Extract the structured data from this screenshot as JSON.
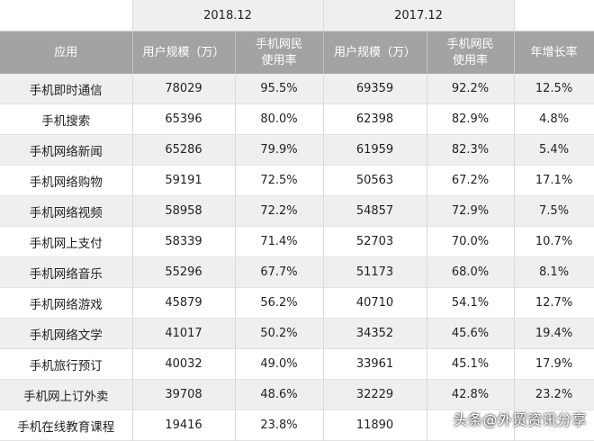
{
  "table": {
    "periods": [
      "2018.12",
      "2017.12"
    ],
    "headers": {
      "app": "应用",
      "users_a": "用户规模（万）",
      "rate_a_line1": "手机网民",
      "rate_a_line2": "使用率",
      "users_b": "用户规模（万）",
      "rate_b_line1": "手机网民",
      "rate_b_line2": "使用率",
      "growth": "年增长率"
    },
    "rows": [
      [
        "手机即时通信",
        "78029",
        "95.5%",
        "69359",
        "92.2%",
        "12.5%"
      ],
      [
        "手机搜索",
        "65396",
        "80.0%",
        "62398",
        "82.9%",
        "4.8%"
      ],
      [
        "手机网络新闻",
        "65286",
        "79.9%",
        "61959",
        "82.3%",
        "5.4%"
      ],
      [
        "手机网络购物",
        "59191",
        "72.5%",
        "50563",
        "67.2%",
        "17.1%"
      ],
      [
        "手机网络视频",
        "58958",
        "72.2%",
        "54857",
        "72.9%",
        "7.5%"
      ],
      [
        "手机网上支付",
        "58339",
        "71.4%",
        "52703",
        "70.0%",
        "10.7%"
      ],
      [
        "手机网络音乐",
        "55296",
        "67.7%",
        "51173",
        "68.0%",
        "8.1%"
      ],
      [
        "手机网络游戏",
        "45879",
        "56.2%",
        "40710",
        "54.1%",
        "12.7%"
      ],
      [
        "手机网络文学",
        "41017",
        "50.2%",
        "34352",
        "45.6%",
        "19.4%"
      ],
      [
        "手机旅行预订",
        "40032",
        "49.0%",
        "33961",
        "45.1%",
        "17.9%"
      ],
      [
        "手机网上订外卖",
        "39708",
        "48.6%",
        "32229",
        "42.8%",
        "23.2%"
      ],
      [
        "手机在线教育课程",
        "19416",
        "23.8%",
        "11890",
        "",
        ""
      ]
    ]
  },
  "watermark": "头条@外贸资讯分享"
}
